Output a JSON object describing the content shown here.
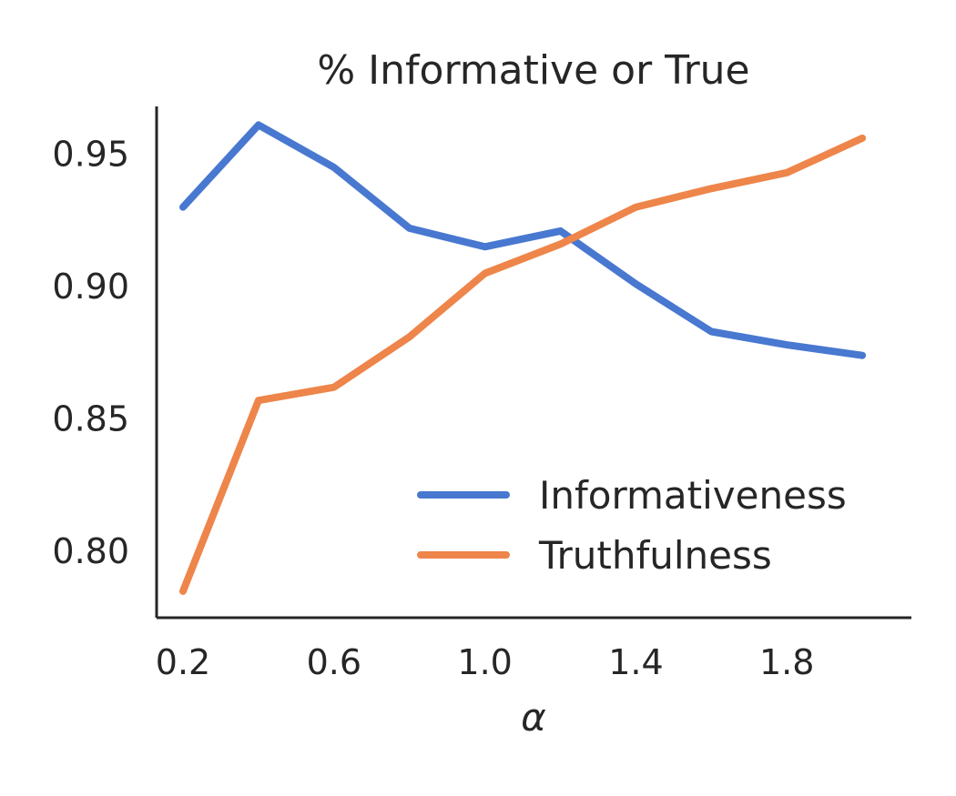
{
  "chart_data": {
    "type": "line",
    "title": "% Informative or True",
    "xlabel": "α",
    "ylabel": "",
    "x": [
      0.2,
      0.4,
      0.6,
      0.8,
      1.0,
      1.2,
      1.4,
      1.6,
      1.8,
      2.0
    ],
    "xlim": [
      0.13,
      2.13
    ],
    "ylim": [
      0.775,
      0.968
    ],
    "xticks": [
      0.2,
      0.6,
      1.0,
      1.4,
      1.8
    ],
    "xtick_labels": [
      "0.2",
      "0.6",
      "1.0",
      "1.4",
      "1.8"
    ],
    "yticks": [
      0.8,
      0.85,
      0.9,
      0.95
    ],
    "ytick_labels": [
      "0.80",
      "0.85",
      "0.90",
      "0.95"
    ],
    "grid": false,
    "legend_position": "bottom-right",
    "series": [
      {
        "name": "Informativeness",
        "color": "#4878d0",
        "values": [
          0.93,
          0.961,
          0.945,
          0.922,
          0.915,
          0.921,
          0.901,
          0.883,
          0.878,
          0.874
        ]
      },
      {
        "name": "Truthfulness",
        "color": "#ee854a",
        "values": [
          0.785,
          0.857,
          0.862,
          0.881,
          0.905,
          0.916,
          0.93,
          0.937,
          0.943,
          0.956
        ]
      }
    ]
  }
}
